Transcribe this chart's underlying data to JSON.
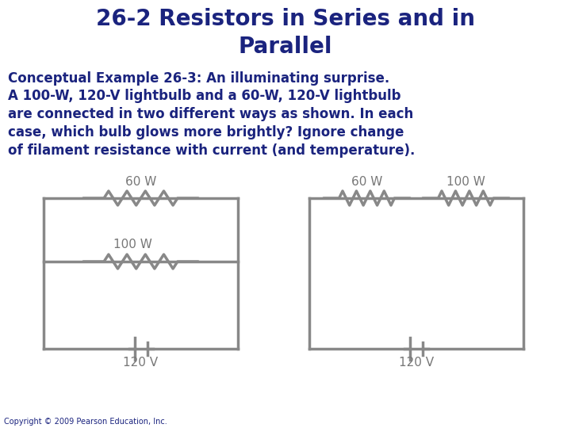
{
  "title": "26-2 Resistors in Series and in\nParallel",
  "title_color": "#1a237e",
  "title_fontsize": 20,
  "subtitle": "Conceptual Example 26-3: An illuminating surprise.",
  "subtitle_fontsize": 12,
  "body_text": "A 100-W, 120-V lightbulb and a 60-W, 120-V lightbulb\nare connected in two different ways as shown. In each\ncase, which bulb glows more brightly? Ignore change\nof filament resistance with current (and temperature).",
  "body_fontsize": 12,
  "text_color": "#1a237e",
  "circuit_color": "#888888",
  "label_color": "#777777",
  "bg_color": "#ffffff",
  "copyright": "Copyright © 2009 Pearson Education, Inc.",
  "copyright_fontsize": 7,
  "lw": 2.5
}
